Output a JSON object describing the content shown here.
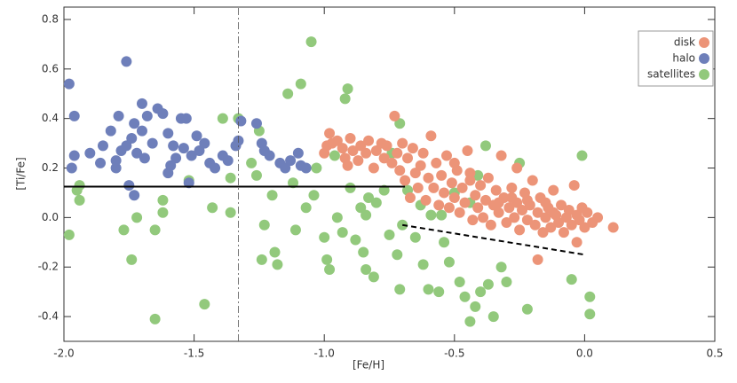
{
  "chart_data": {
    "type": "scatter",
    "x_label": "[Fe/H]",
    "y_label": "[Ti/Fe]",
    "xlim": [
      -2.0,
      0.5
    ],
    "ylim": [
      -0.5,
      0.85
    ],
    "xticks": [
      {
        "value": -2.0,
        "label": "-2.0"
      },
      {
        "value": -1.5,
        "label": "-1.5"
      },
      {
        "value": -1.0,
        "label": "-1.0"
      },
      {
        "value": -0.5,
        "label": "-0.5"
      },
      {
        "value": 0.0,
        "label": "0.0"
      },
      {
        "value": 0.5,
        "label": "0.5"
      }
    ],
    "yticks": [
      -0.4,
      -0.2,
      {
        "value": 0.0,
        "label": "0.0"
      },
      0.2,
      0.4,
      0.6,
      0.8
    ],
    "grid": false,
    "legend": "upper right",
    "series": [
      {
        "name": "disk",
        "color": "#ec9478",
        "x": [
          -1.0,
          -0.99,
          -0.98,
          -0.97,
          -0.95,
          -0.93,
          -0.92,
          -0.91,
          -0.9,
          -0.89,
          -0.87,
          -0.86,
          -0.84,
          -0.83,
          -0.81,
          -0.8,
          -0.78,
          -0.77,
          -0.76,
          -0.74,
          -0.73,
          -0.72,
          -0.71,
          -0.7,
          -0.69,
          -0.68,
          -0.67,
          -0.66,
          -0.65,
          -0.64,
          -0.63,
          -0.62,
          -0.61,
          -0.6,
          -0.59,
          -0.58,
          -0.57,
          -0.56,
          -0.55,
          -0.54,
          -0.53,
          -0.52,
          -0.51,
          -0.5,
          -0.49,
          -0.48,
          -0.47,
          -0.46,
          -0.45,
          -0.44,
          -0.43,
          -0.42,
          -0.41,
          -0.4,
          -0.39,
          -0.38,
          -0.37,
          -0.36,
          -0.35,
          -0.34,
          -0.33,
          -0.32,
          -0.31,
          -0.3,
          -0.29,
          -0.28,
          -0.27,
          -0.26,
          -0.25,
          -0.24,
          -0.23,
          -0.22,
          -0.21,
          -0.2,
          -0.19,
          -0.18,
          -0.17,
          -0.16,
          -0.15,
          -0.14,
          -0.13,
          -0.12,
          -0.11,
          -0.1,
          -0.09,
          -0.08,
          -0.07,
          -0.06,
          -0.05,
          -0.04,
          -0.03,
          -0.02,
          -0.01,
          0.0,
          0.01,
          0.03,
          0.05,
          0.11,
          -0.18,
          -0.03,
          -0.26,
          -0.5,
          -0.44,
          -0.33,
          -0.28,
          -0.22,
          -0.15,
          -0.12
        ],
        "y": [
          0.26,
          0.29,
          0.34,
          0.3,
          0.31,
          0.28,
          0.24,
          0.21,
          0.32,
          0.27,
          0.23,
          0.29,
          0.26,
          0.31,
          0.2,
          0.27,
          0.3,
          0.24,
          0.29,
          0.22,
          0.41,
          0.26,
          0.19,
          0.3,
          0.15,
          0.24,
          0.08,
          0.28,
          0.18,
          0.12,
          0.21,
          0.26,
          0.07,
          0.16,
          0.33,
          0.12,
          0.22,
          0.05,
          0.17,
          0.1,
          0.25,
          0.04,
          0.14,
          0.08,
          0.19,
          0.02,
          0.12,
          0.06,
          0.27,
          0.15,
          -0.01,
          0.09,
          0.04,
          0.13,
          0.0,
          0.07,
          0.16,
          -0.03,
          0.05,
          0.11,
          0.02,
          0.25,
          0.08,
          -0.02,
          0.04,
          0.12,
          0.0,
          0.06,
          -0.05,
          0.03,
          0.1,
          -0.01,
          0.05,
          0.15,
          -0.03,
          0.02,
          0.08,
          -0.06,
          0.0,
          0.04,
          -0.04,
          0.11,
          0.01,
          -0.02,
          0.05,
          -0.06,
          0.0,
          0.03,
          -0.03,
          0.13,
          0.01,
          -0.01,
          0.04,
          -0.04,
          0.02,
          -0.02,
          0.0,
          -0.04,
          -0.17,
          -0.1,
          0.2,
          0.22,
          0.18,
          0.06,
          0.08,
          0.07,
          0.06,
          0.02
        ]
      },
      {
        "name": "halo",
        "color": "#6e7fba",
        "x": [
          -1.98,
          -1.96,
          -1.96,
          -1.97,
          -1.9,
          -1.85,
          -1.82,
          -1.79,
          -1.78,
          -1.76,
          -1.76,
          -1.74,
          -1.73,
          -1.72,
          -1.7,
          -1.7,
          -1.69,
          -1.68,
          -1.66,
          -1.64,
          -1.62,
          -1.6,
          -1.58,
          -1.57,
          -1.55,
          -1.54,
          -1.53,
          -1.51,
          -1.49,
          -1.48,
          -1.46,
          -1.44,
          -1.42,
          -1.39,
          -1.37,
          -1.34,
          -1.33,
          -1.32,
          -1.26,
          -1.24,
          -1.23,
          -1.21,
          -1.17,
          -1.15,
          -1.13,
          -1.1,
          -1.09,
          -1.07,
          -1.8,
          -1.75,
          -1.73,
          -1.52,
          -1.6,
          -1.8,
          -1.86,
          -1.59
        ],
        "y": [
          0.54,
          0.41,
          0.25,
          0.2,
          0.26,
          0.29,
          0.35,
          0.41,
          0.27,
          0.63,
          0.29,
          0.32,
          0.38,
          0.26,
          0.35,
          0.46,
          0.24,
          0.41,
          0.3,
          0.44,
          0.42,
          0.34,
          0.29,
          0.24,
          0.4,
          0.28,
          0.4,
          0.25,
          0.33,
          0.27,
          0.3,
          0.22,
          0.2,
          0.25,
          0.23,
          0.29,
          0.31,
          0.39,
          0.38,
          0.3,
          0.27,
          0.25,
          0.22,
          0.2,
          0.23,
          0.26,
          0.21,
          0.2,
          0.2,
          0.13,
          0.09,
          0.14,
          0.18,
          0.23,
          0.22,
          0.21
        ]
      },
      {
        "name": "satellites",
        "color": "#92c97c",
        "x": [
          -1.98,
          -1.95,
          -1.94,
          -1.94,
          -1.77,
          -1.74,
          -1.72,
          -1.65,
          -1.65,
          -1.62,
          -1.62,
          -1.52,
          -1.46,
          -1.43,
          -1.39,
          -1.36,
          -1.36,
          -1.33,
          -1.28,
          -1.26,
          -1.25,
          -1.24,
          -1.23,
          -1.2,
          -1.19,
          -1.18,
          -1.14,
          -1.12,
          -1.11,
          -1.09,
          -1.07,
          -1.05,
          -1.04,
          -1.03,
          -1.0,
          -0.99,
          -0.98,
          -0.96,
          -0.95,
          -0.93,
          -0.92,
          -0.91,
          -0.9,
          -0.88,
          -0.86,
          -0.85,
          -0.84,
          -0.83,
          -0.81,
          -0.8,
          -0.77,
          -0.75,
          -0.74,
          -0.72,
          -0.71,
          -0.71,
          -0.7,
          -0.68,
          -0.65,
          -0.62,
          -0.6,
          -0.59,
          -0.56,
          -0.54,
          -0.52,
          -0.5,
          -0.48,
          -0.46,
          -0.44,
          -0.42,
          -0.41,
          -0.4,
          -0.38,
          -0.37,
          -0.35,
          -0.32,
          -0.3,
          -0.25,
          -0.22,
          -0.05,
          -0.01,
          0.02,
          0.02,
          -0.44,
          -0.55,
          -0.63,
          -0.84
        ],
        "y": [
          -0.07,
          0.11,
          0.13,
          0.07,
          -0.05,
          -0.17,
          0.0,
          -0.41,
          -0.05,
          0.02,
          0.07,
          0.15,
          -0.35,
          0.04,
          0.4,
          0.16,
          0.02,
          0.4,
          0.22,
          0.17,
          0.35,
          -0.17,
          -0.03,
          0.09,
          -0.14,
          -0.19,
          0.5,
          0.14,
          -0.05,
          0.54,
          0.04,
          0.71,
          0.09,
          0.2,
          -0.08,
          -0.17,
          -0.21,
          0.25,
          0.0,
          -0.06,
          0.48,
          0.52,
          0.12,
          -0.09,
          0.04,
          -0.14,
          -0.21,
          0.08,
          -0.24,
          0.06,
          0.11,
          -0.07,
          0.26,
          -0.15,
          0.38,
          -0.29,
          -0.03,
          0.11,
          -0.08,
          -0.19,
          -0.29,
          0.01,
          -0.3,
          -0.1,
          -0.18,
          0.1,
          -0.26,
          -0.32,
          -0.42,
          -0.36,
          0.17,
          -0.3,
          0.29,
          -0.27,
          -0.4,
          -0.2,
          -0.26,
          0.22,
          -0.37,
          -0.25,
          0.25,
          -0.32,
          -0.39,
          0.06,
          0.01,
          0.05,
          0.01
        ]
      }
    ],
    "reference_lines": [
      {
        "style": "solid",
        "x": [
          -2.0,
          -0.69
        ],
        "y": [
          0.125,
          0.125
        ]
      },
      {
        "style": "dashed",
        "x": [
          -0.7,
          0.0
        ],
        "y": [
          -0.03,
          -0.15
        ]
      },
      {
        "style": "dashdot",
        "x": [
          -1.33,
          -1.33
        ],
        "y": [
          -0.5,
          0.85
        ]
      }
    ]
  }
}
